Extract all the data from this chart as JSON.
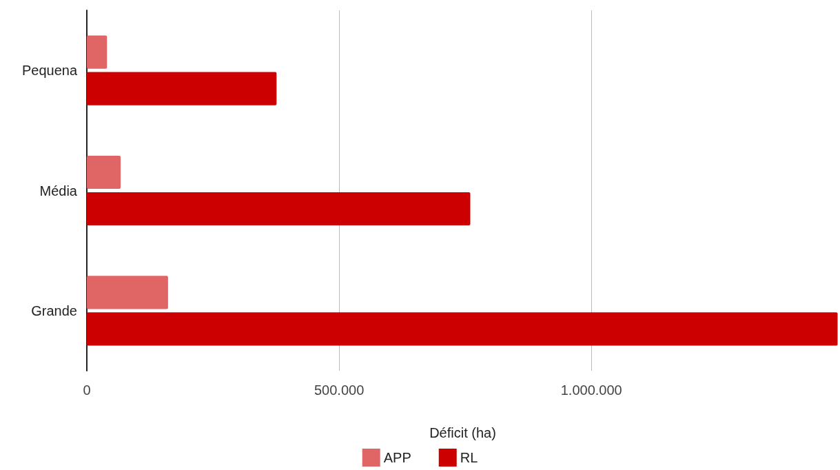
{
  "chart_data": {
    "type": "bar",
    "orientation": "horizontal",
    "xlabel": "Déficit (ha)",
    "categories": [
      "Pequena",
      "Média",
      "Grande"
    ],
    "series": [
      {
        "name": "APP",
        "color": "#e06666",
        "values": [
          40000,
          67000,
          161000
        ]
      },
      {
        "name": "RL",
        "color": "#cc0000",
        "values": [
          376000,
          760000,
          1488000
        ]
      }
    ],
    "xlim": [
      0,
      1490000
    ],
    "xticks": [
      0,
      {
        "value": 500000,
        "label": "500.000"
      },
      {
        "value": 1000000,
        "label": "1.000.000"
      }
    ],
    "grid": "x",
    "legend": "bottom"
  }
}
